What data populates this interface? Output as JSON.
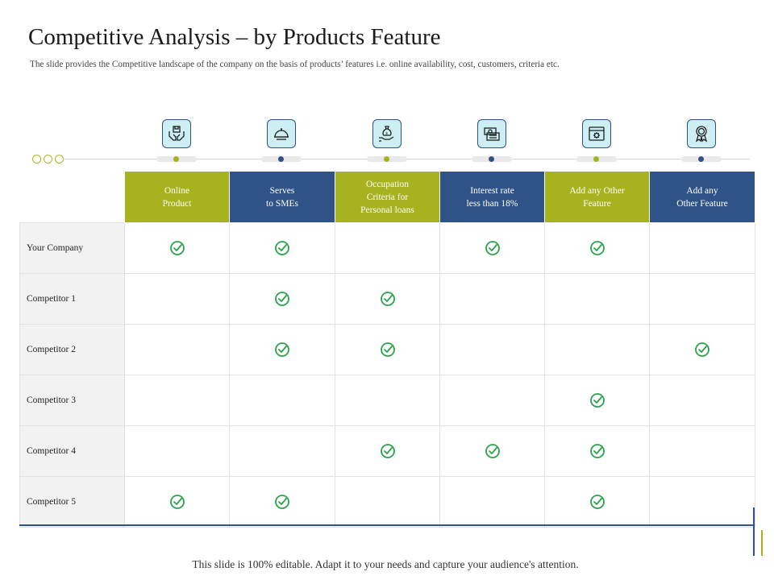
{
  "title": "Competitive Analysis – by Products Feature",
  "subtitle": "The slide provides the Competitive landscape of the company on the basis of products’ features i.e. online availability, cost, customers, criteria etc.",
  "colors": {
    "green": "#a6b31f",
    "blue": "#2f5387",
    "check": "#2aa34a",
    "icon_fill": "#cdeff3"
  },
  "columns": [
    {
      "label_lines": [
        "Online",
        "Product"
      ],
      "color": "green",
      "icon": "hands-box-icon"
    },
    {
      "label_lines": [
        "Serves",
        "to SMEs"
      ],
      "color": "blue",
      "icon": "service-bell-icon"
    },
    {
      "label_lines": [
        "Occupation",
        "Criteria for",
        "Personal loans"
      ],
      "color": "green",
      "icon": "money-bag-hand-icon"
    },
    {
      "label_lines": [
        "Interest rate",
        "less than 18%"
      ],
      "color": "blue",
      "icon": "cash-stack-icon"
    },
    {
      "label_lines": [
        "Add any Other",
        "Feature"
      ],
      "color": "green",
      "icon": "browser-gear-icon"
    },
    {
      "label_lines": [
        "Add any",
        "Other Feature"
      ],
      "color": "blue",
      "icon": "award-ribbon-icon"
    }
  ],
  "rows": [
    {
      "label": "Your Company",
      "checks": [
        true,
        true,
        false,
        true,
        true,
        false
      ]
    },
    {
      "label": "Competitor 1",
      "checks": [
        false,
        true,
        true,
        false,
        false,
        false
      ]
    },
    {
      "label": "Competitor 2",
      "checks": [
        false,
        true,
        true,
        false,
        false,
        true
      ]
    },
    {
      "label": "Competitor 3",
      "checks": [
        false,
        false,
        false,
        false,
        true,
        false
      ]
    },
    {
      "label": "Competitor 4",
      "checks": [
        false,
        false,
        true,
        true,
        true,
        false
      ]
    },
    {
      "label": "Competitor 5",
      "checks": [
        true,
        true,
        false,
        false,
        true,
        false
      ]
    }
  ],
  "footer": "This slide is 100% editable. Adapt it to your needs and capture your audience's attention."
}
